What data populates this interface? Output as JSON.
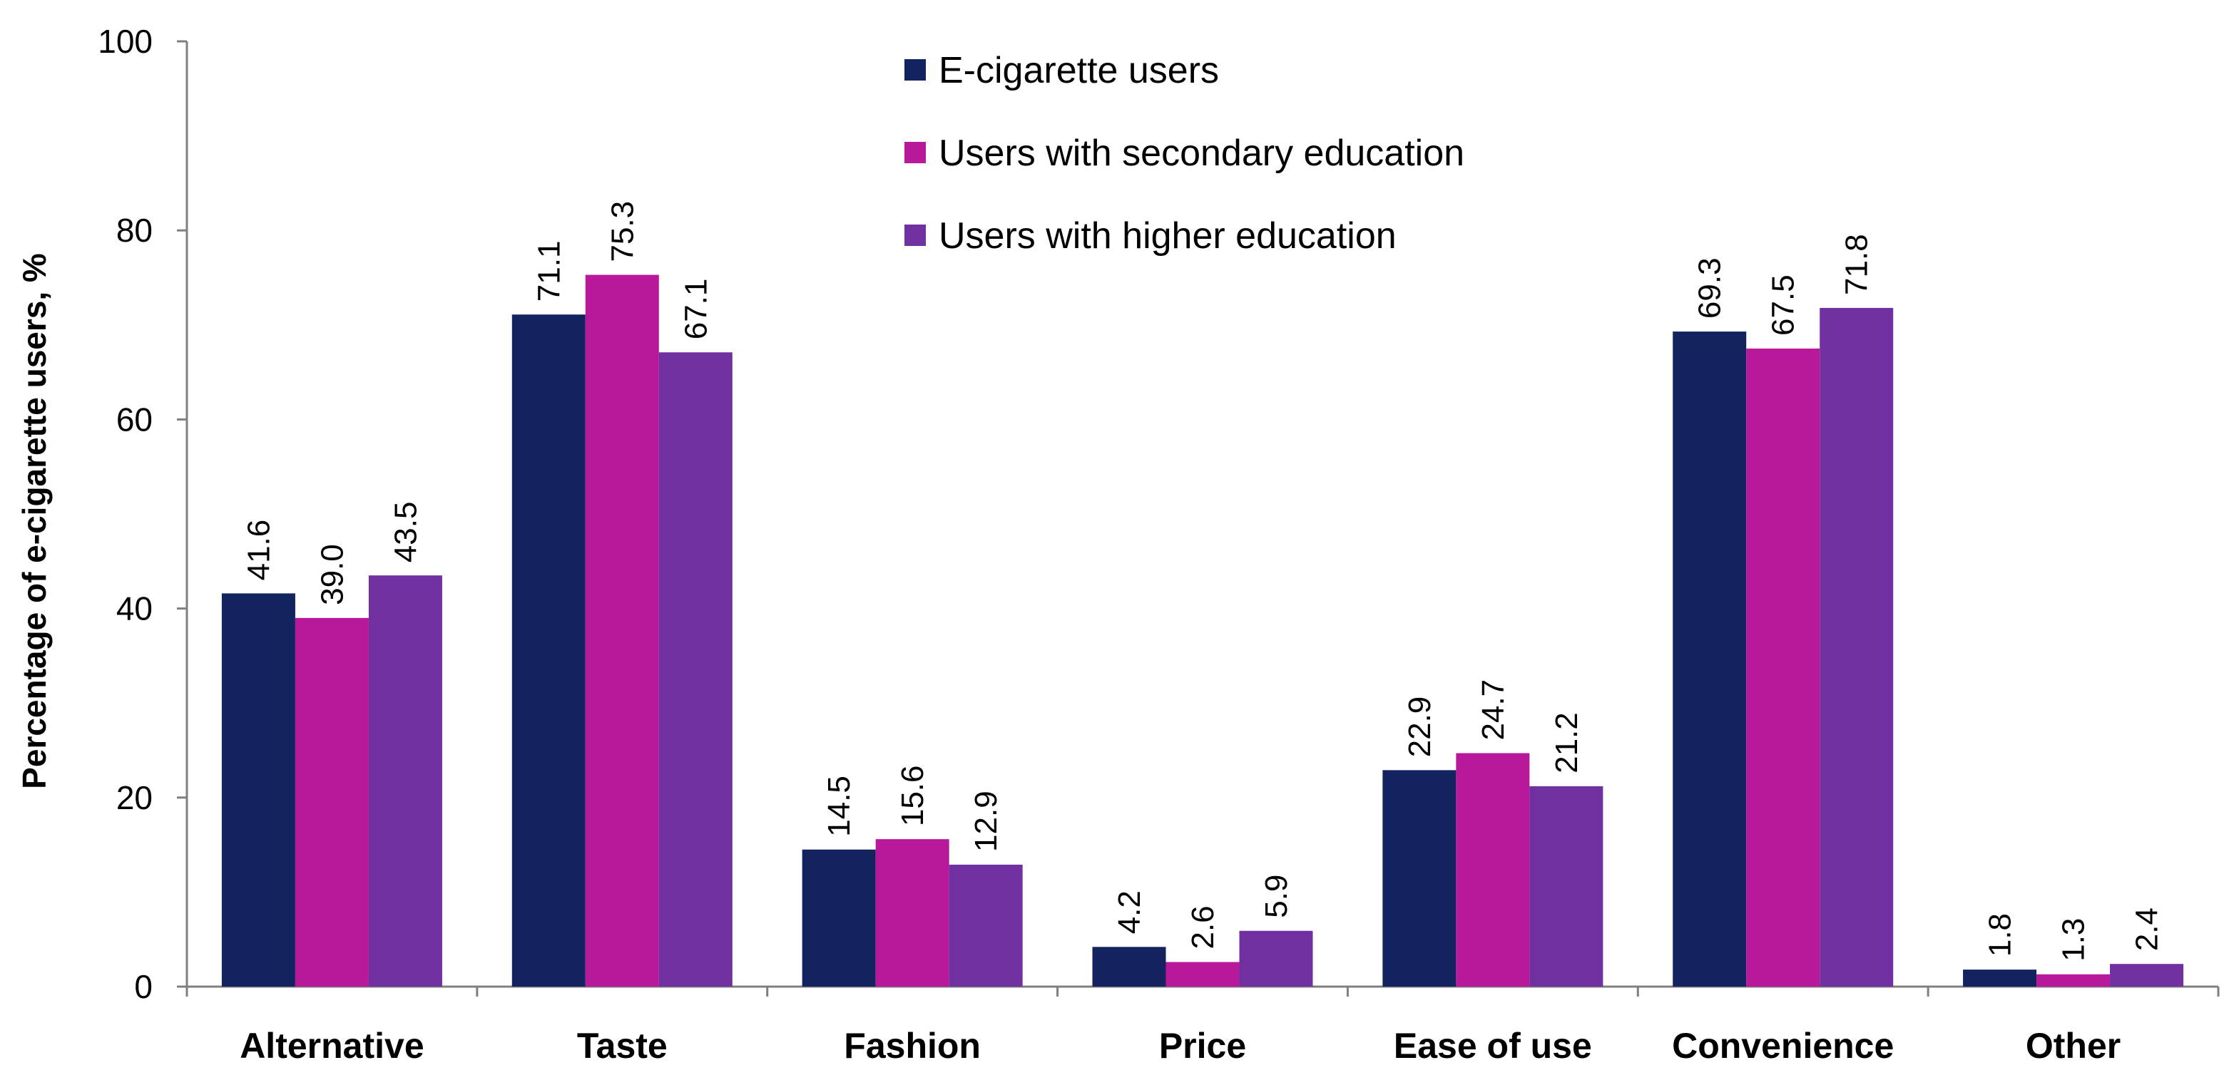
{
  "chart_data": {
    "type": "bar",
    "title": "",
    "xlabel": "",
    "ylabel": "Percentage of e-cigarette users, %",
    "ylim": [
      0,
      100
    ],
    "yticks": [
      0,
      20,
      40,
      60,
      80,
      100
    ],
    "grid": false,
    "legend_position": "top-center",
    "categories": [
      "Alternative",
      "Taste",
      "Fashion",
      "Price",
      "Ease of use",
      "Convenience",
      "Other"
    ],
    "series": [
      {
        "name": "E-cigarette users",
        "color": "#12235f",
        "values": [
          41.6,
          71.1,
          14.5,
          4.2,
          22.9,
          69.3,
          1.8
        ],
        "labels": [
          "41.6",
          "71.1",
          "14.5",
          "4.2",
          "22.9",
          "69.3",
          "1.8"
        ]
      },
      {
        "name": "Users with secondary education",
        "color": "#b8199a",
        "values": [
          39.0,
          75.3,
          15.6,
          2.6,
          24.7,
          67.5,
          1.3
        ],
        "labels": [
          "39.0",
          "75.3",
          "15.6",
          "2.6",
          "24.7",
          "67.5",
          "1.3"
        ]
      },
      {
        "name": "Users with higher education",
        "color": "#7030a0",
        "values": [
          43.5,
          67.1,
          12.9,
          5.9,
          21.2,
          71.8,
          2.4
        ],
        "labels": [
          "43.5",
          "67.1",
          "12.9",
          "5.9",
          "21.2",
          "71.8",
          "2.4"
        ]
      }
    ]
  }
}
